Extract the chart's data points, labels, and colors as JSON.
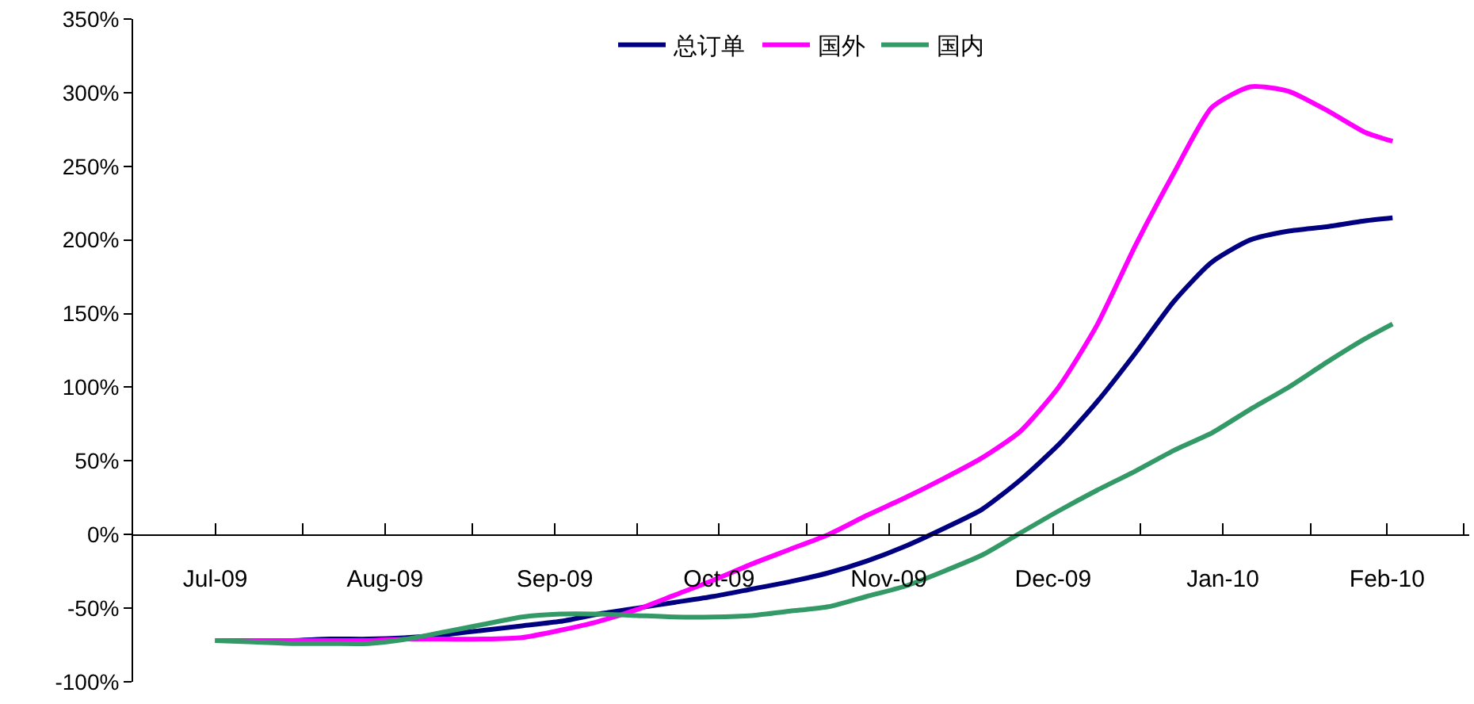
{
  "chart_data": {
    "type": "line",
    "x": [
      "2009-07-16",
      "2009-07-23",
      "2009-07-30",
      "2009-08-06",
      "2009-08-13",
      "2009-08-20",
      "2009-08-27",
      "2009-09-03",
      "2009-09-10",
      "2009-09-17",
      "2009-09-24",
      "2009-10-01",
      "2009-10-08",
      "2009-10-15",
      "2009-10-22",
      "2009-10-29",
      "2009-11-05",
      "2009-11-12",
      "2009-11-19",
      "2009-11-26",
      "2009-12-03",
      "2009-12-10",
      "2009-12-17",
      "2009-12-24",
      "2009-12-31",
      "2010-01-07",
      "2010-01-14",
      "2010-01-21",
      "2010-01-28",
      "2010-02-04",
      "2010-02-11",
      "2010-02-16"
    ],
    "series": [
      {
        "name": "总订单",
        "color": "#000080",
        "values": [
          -72,
          -72,
          -72,
          -71,
          -71,
          -70,
          -68,
          -65,
          -62,
          -59,
          -54,
          -50,
          -46,
          -42,
          -37,
          -32,
          -26,
          -18,
          -8,
          4,
          17,
          37,
          61,
          90,
          123,
          158,
          185,
          200,
          206,
          209,
          213,
          215
        ]
      },
      {
        "name": "国外",
        "color": "#ff00ff",
        "values": [
          -72,
          -72,
          -72,
          -72,
          -72,
          -71,
          -71,
          -71,
          -70,
          -65,
          -59,
          -51,
          -41,
          -31,
          -20,
          -10,
          0,
          13,
          25,
          38,
          52,
          70,
          100,
          142,
          196,
          245,
          290,
          304,
          301,
          288,
          273,
          267
        ]
      },
      {
        "name": "国内",
        "color": "#339966",
        "values": [
          -72,
          -73,
          -74,
          -74,
          -74,
          -71,
          -66,
          -61,
          -56,
          -54,
          -54,
          -55,
          -56,
          -56,
          -55,
          -52,
          -49,
          -42,
          -35,
          -25,
          -14,
          1,
          16,
          30,
          43,
          57,
          69,
          85,
          100,
          117,
          133,
          143
        ]
      }
    ],
    "xlim": [
      "2009-07-01",
      "2010-03-02"
    ],
    "xticks": [
      {
        "value": "2009-07-01",
        "label": null
      },
      {
        "value": "2009-07-16",
        "label": "Jul-09"
      },
      {
        "value": "2009-08-01",
        "label": null
      },
      {
        "value": "2009-08-16",
        "label": "Aug-09"
      },
      {
        "value": "2009-09-01",
        "label": null
      },
      {
        "value": "2009-09-16",
        "label": "Sep-09"
      },
      {
        "value": "2009-10-01",
        "label": null
      },
      {
        "value": "2009-10-16",
        "label": "Oct-09"
      },
      {
        "value": "2009-11-01",
        "label": null
      },
      {
        "value": "2009-11-16",
        "label": "Nov-09"
      },
      {
        "value": "2009-12-01",
        "label": null
      },
      {
        "value": "2009-12-16",
        "label": "Dec-09"
      },
      {
        "value": "2010-01-01",
        "label": null
      },
      {
        "value": "2010-01-16",
        "label": "Jan-10"
      },
      {
        "value": "2010-02-01",
        "label": null
      },
      {
        "value": "2010-02-15",
        "label": "Feb-10"
      },
      {
        "value": "2010-03-01",
        "label": null
      }
    ],
    "ylim": [
      -100,
      350
    ],
    "yticks": [
      {
        "value": -100,
        "label": "-100%"
      },
      {
        "value": -50,
        "label": "-50%"
      },
      {
        "value": 0,
        "label": "0%"
      },
      {
        "value": 50,
        "label": "50%"
      },
      {
        "value": 100,
        "label": "100%"
      },
      {
        "value": 150,
        "label": "150%"
      },
      {
        "value": 200,
        "label": "200%"
      },
      {
        "value": 250,
        "label": "250%"
      },
      {
        "value": 300,
        "label": "300%"
      },
      {
        "value": 350,
        "label": "350%"
      }
    ],
    "grid": false,
    "legend": "top",
    "marker": "none",
    "line_style": "solid"
  }
}
